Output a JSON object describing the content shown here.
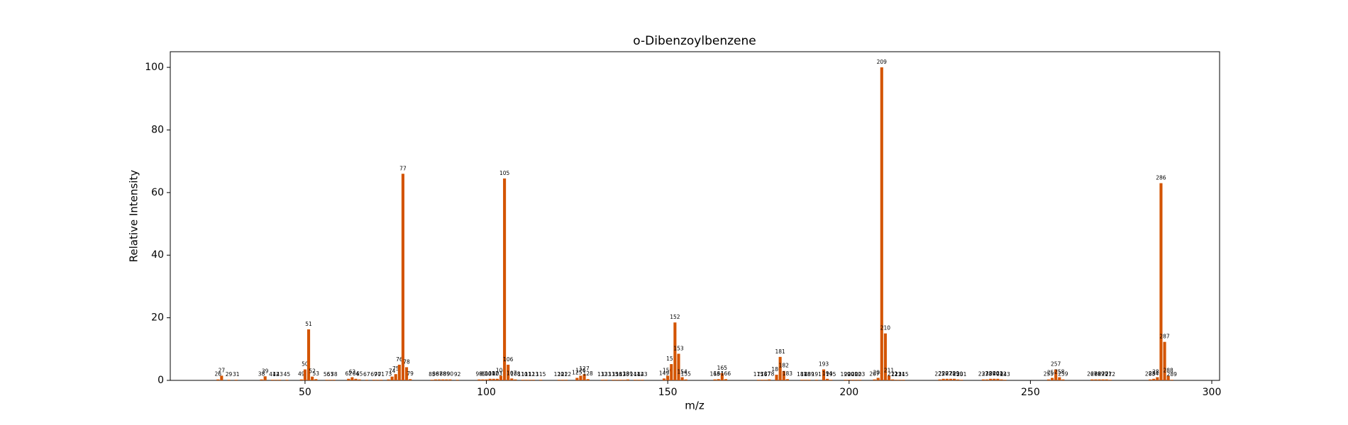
{
  "chart_data": {
    "type": "bar",
    "title": "o-Dibenzoylbenzene",
    "xlabel": "m/z",
    "ylabel": "Relative Intensity",
    "color": "#d35400",
    "x": [
      26,
      27,
      29,
      31,
      38,
      39,
      41,
      42,
      43,
      45,
      49,
      50,
      51,
      52,
      53,
      56,
      57,
      58,
      62,
      63,
      64,
      65,
      67,
      69,
      70,
      71,
      73,
      74,
      75,
      76,
      77,
      78,
      79,
      85,
      86,
      87,
      88,
      89,
      90,
      92,
      98,
      99,
      100,
      101,
      102,
      103,
      104,
      105,
      106,
      107,
      108,
      110,
      111,
      112,
      113,
      115,
      120,
      121,
      122,
      125,
      126,
      127,
      128,
      132,
      133,
      135,
      136,
      137,
      138,
      139,
      141,
      142,
      143,
      149,
      150,
      151,
      152,
      153,
      154,
      155,
      163,
      164,
      165,
      166,
      175,
      176,
      177,
      178,
      180,
      181,
      182,
      183,
      187,
      188,
      189,
      191,
      193,
      194,
      195,
      199,
      200,
      201,
      202,
      203,
      207,
      208,
      209,
      210,
      211,
      212,
      213,
      214,
      215,
      225,
      226,
      227,
      228,
      229,
      230,
      231,
      237,
      238,
      239,
      240,
      241,
      242,
      243,
      255,
      256,
      257,
      258,
      259,
      267,
      268,
      269,
      270,
      271,
      272,
      283,
      284,
      285,
      286,
      287,
      288,
      289
    ],
    "values": [
      0.3,
      1.5,
      0.2,
      0.2,
      0.3,
      1.3,
      0.2,
      0.2,
      0.2,
      0.2,
      0.3,
      3.5,
      16.3,
      1.2,
      0.4,
      0.2,
      0.2,
      0.2,
      0.5,
      1.0,
      0.5,
      0.3,
      0.2,
      0.2,
      0.2,
      0.2,
      0.3,
      1.2,
      2,
      5,
      66,
      4.2,
      0.4,
      0.2,
      0.3,
      0.3,
      0.3,
      0.3,
      0.3,
      0.2,
      0.3,
      0.3,
      0.3,
      0.5,
      0.5,
      0.5,
      1.5,
      64.5,
      5,
      0.6,
      0.3,
      0.2,
      0.2,
      0.2,
      0.2,
      0.2,
      0.2,
      0.2,
      0.2,
      0.8,
      1.5,
      2,
      0.4,
      0.2,
      0.2,
      0.2,
      0.2,
      0.2,
      0.2,
      0.3,
      0.2,
      0.2,
      0.2,
      0.6,
      1.5,
      5.2,
      18.5,
      8.5,
      1.0,
      0.3,
      0.3,
      0.4,
      2.3,
      0.4,
      0.2,
      0.2,
      0.2,
      0.3,
      1.8,
      7.5,
      3,
      0.4,
      0.2,
      0.2,
      0.2,
      0.2,
      3.5,
      0.5,
      0.2,
      0.2,
      0.2,
      0.2,
      0.2,
      0.2,
      0.3,
      0.8,
      100,
      15,
      1.5,
      0.3,
      0.2,
      0.2,
      0.2,
      0.3,
      0.5,
      0.5,
      0.5,
      0.5,
      0.3,
      0.2,
      0.3,
      0.3,
      0.5,
      0.5,
      0.5,
      0.3,
      0.2,
      0.3,
      0.8,
      3.5,
      1.0,
      0.3,
      0.3,
      0.3,
      0.3,
      0.3,
      0.3,
      0.2,
      0.3,
      0.5,
      1.0,
      63,
      12.3,
      1.5,
      0.2
    ],
    "xlim": [
      12.85,
      302.15
    ],
    "xticks": [
      50,
      100,
      150,
      200,
      250,
      300
    ],
    "ylim": [
      0,
      105
    ],
    "yticks": [
      0,
      20,
      40,
      60,
      80,
      100
    ]
  }
}
